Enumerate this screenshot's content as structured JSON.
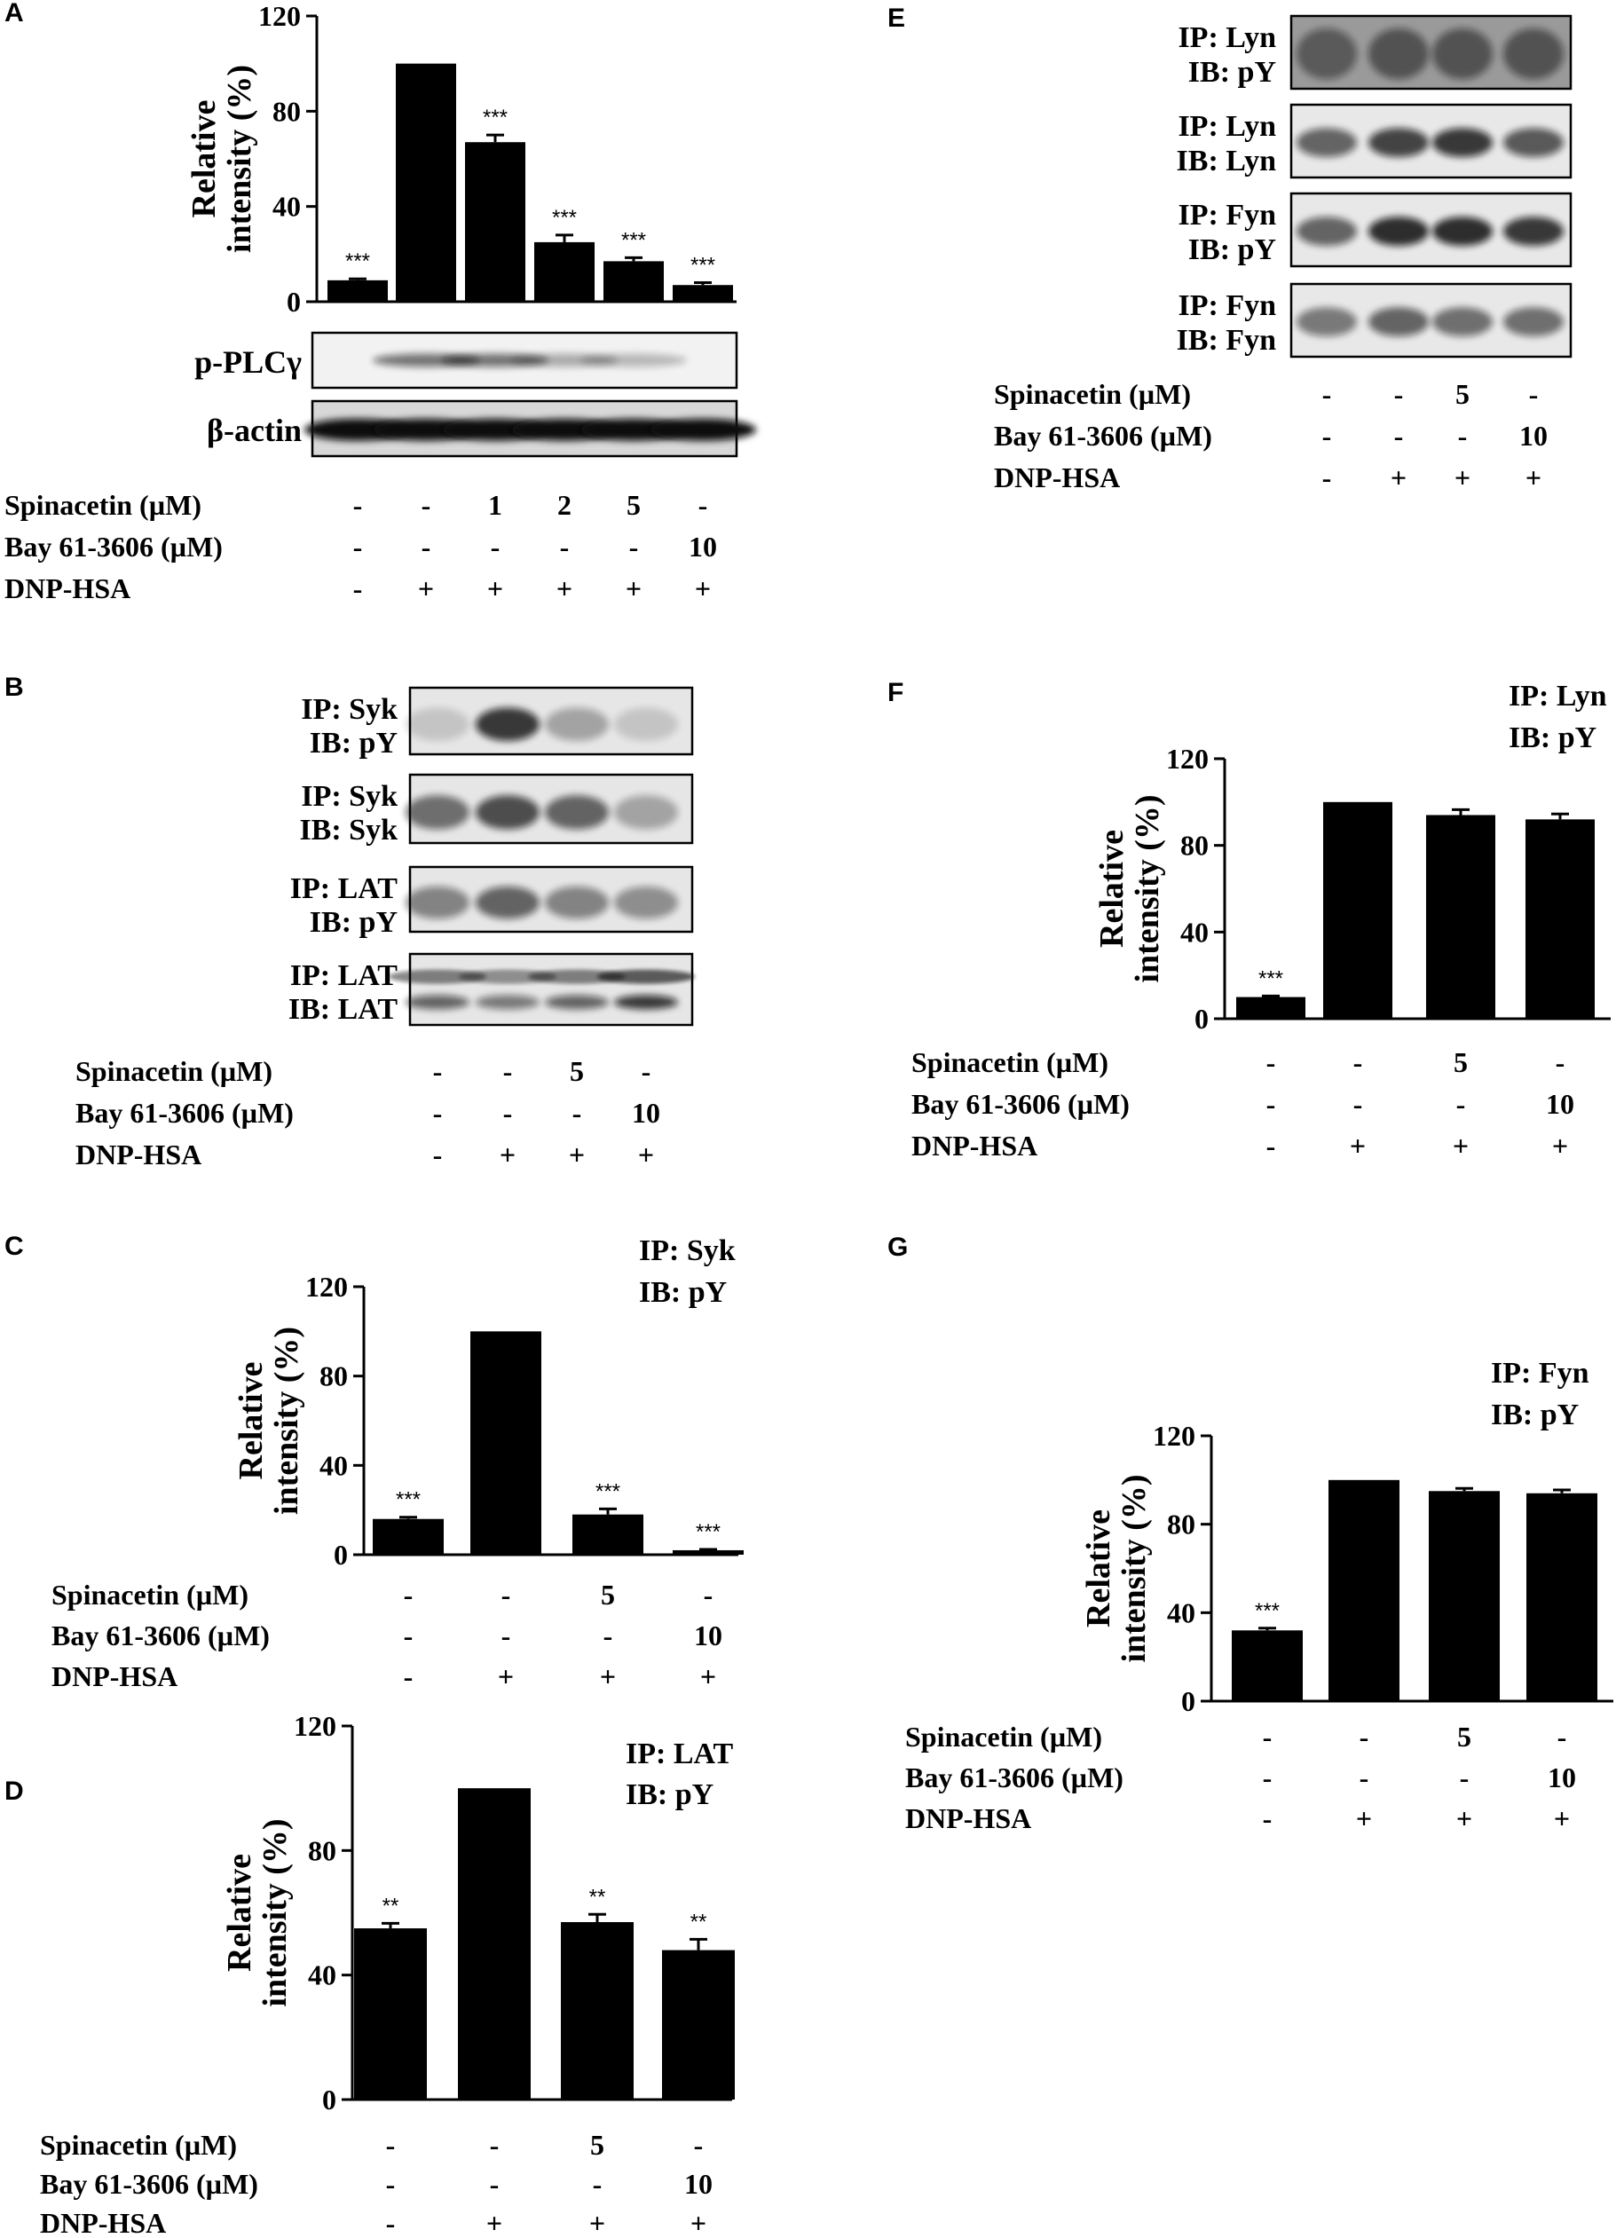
{
  "panels": {
    "A": {
      "label": "A",
      "y_axis_label_line1": "Relative",
      "y_axis_label_line2": "intensity (%)",
      "blot_rows": [
        "p-PLCγ",
        "β-actin"
      ],
      "treatments": [
        {
          "name": "Spinacetin (µM)",
          "values": [
            "-",
            "-",
            "1",
            "2",
            "5",
            "-"
          ]
        },
        {
          "name": "Bay 61-3606 (µM)",
          "values": [
            "-",
            "-",
            "-",
            "-",
            "-",
            "10"
          ]
        },
        {
          "name": "DNP-HSA",
          "values": [
            "-",
            "+",
            "+",
            "+",
            "+",
            "+"
          ]
        }
      ]
    },
    "B": {
      "label": "B",
      "blot_rows": [
        [
          "IP: Syk",
          "IB: pY"
        ],
        [
          "IP: Syk",
          "IB: Syk"
        ],
        [
          "IP: LAT",
          "IB: pY"
        ],
        [
          "IP: LAT",
          "IB: LAT"
        ]
      ],
      "treatments": [
        {
          "name": "Spinacetin (µM)",
          "values": [
            "-",
            "-",
            "5",
            "-"
          ]
        },
        {
          "name": "Bay 61-3606 (µM)",
          "values": [
            "-",
            "-",
            "-",
            "10"
          ]
        },
        {
          "name": "DNP-HSA",
          "values": [
            "-",
            "+",
            "+",
            "+"
          ]
        }
      ]
    },
    "C": {
      "label": "C",
      "ip_label": "IP: Syk",
      "ib_label": "IB: pY",
      "y_axis_label_line1": "Relative",
      "y_axis_label_line2": "intensity (%)",
      "treatments": [
        {
          "name": "Spinacetin (µM)",
          "values": [
            "-",
            "-",
            "5",
            "-"
          ]
        },
        {
          "name": "Bay 61-3606 (µM)",
          "values": [
            "-",
            "-",
            "-",
            "10"
          ]
        },
        {
          "name": "DNP-HSA",
          "values": [
            "-",
            "+",
            "+",
            "+"
          ]
        }
      ]
    },
    "D": {
      "label": "D",
      "ip_label": "IP: LAT",
      "ib_label": "IB: pY",
      "y_axis_label_line1": "Relative",
      "y_axis_label_line2": "intensity (%)",
      "treatments": [
        {
          "name": "Spinacetin (µM)",
          "values": [
            "-",
            "-",
            "5",
            "-"
          ]
        },
        {
          "name": "Bay 61-3606 (µM)",
          "values": [
            "-",
            "-",
            "-",
            "10"
          ]
        },
        {
          "name": "DNP-HSA",
          "values": [
            "-",
            "+",
            "+",
            "+"
          ]
        }
      ]
    },
    "E": {
      "label": "E",
      "blot_rows": [
        [
          "IP: Lyn",
          "IB: pY"
        ],
        [
          "IP: Lyn",
          "IB: Lyn"
        ],
        [
          "IP: Fyn",
          "IB: pY"
        ],
        [
          "IP: Fyn",
          "IB: Fyn"
        ]
      ],
      "treatments": [
        {
          "name": "Spinacetin (µM)",
          "values": [
            "-",
            "-",
            "5",
            "-"
          ]
        },
        {
          "name": "Bay 61-3606 (µM)",
          "values": [
            "-",
            "-",
            "-",
            "10"
          ]
        },
        {
          "name": "DNP-HSA",
          "values": [
            "-",
            "+",
            "+",
            "+"
          ]
        }
      ]
    },
    "F": {
      "label": "F",
      "ip_label": "IP: Lyn",
      "ib_label": "IB: pY",
      "y_axis_label_line1": "Relative",
      "y_axis_label_line2": "intensity (%)",
      "treatments": [
        {
          "name": "Spinacetin (µM)",
          "values": [
            "-",
            "-",
            "5",
            "-"
          ]
        },
        {
          "name": "Bay 61-3606 (µM)",
          "values": [
            "-",
            "-",
            "-",
            "10"
          ]
        },
        {
          "name": "DNP-HSA",
          "values": [
            "-",
            "+",
            "+",
            "+"
          ]
        }
      ]
    },
    "G": {
      "label": "G",
      "ip_label": "IP: Fyn",
      "ib_label": "IB: pY",
      "y_axis_label_line1": "Relative",
      "y_axis_label_line2": "intensity (%)",
      "treatments": [
        {
          "name": "Spinacetin (µM)",
          "values": [
            "-",
            "-",
            "5",
            "-"
          ]
        },
        {
          "name": "Bay 61-3606 (µM)",
          "values": [
            "-",
            "-",
            "-",
            "10"
          ]
        },
        {
          "name": "DNP-HSA",
          "values": [
            "-",
            "+",
            "+",
            "+"
          ]
        }
      ]
    }
  },
  "chart_data": [
    {
      "panel": "A",
      "type": "bar",
      "ylabel": "Relative intensity (%)",
      "ylim": [
        0,
        120
      ],
      "yticks": [
        0,
        40,
        80,
        120
      ],
      "values": [
        9,
        100,
        67,
        25,
        17,
        7
      ],
      "errors": [
        0.6,
        0,
        3,
        3,
        1.5,
        1
      ],
      "significance": [
        "***",
        "",
        "***",
        "***",
        "***",
        "***"
      ],
      "bar_color": "#000000"
    },
    {
      "panel": "C",
      "type": "bar",
      "ylabel": "Relative intensity (%)",
      "ylim": [
        0,
        120
      ],
      "yticks": [
        0,
        40,
        80,
        120
      ],
      "values": [
        16,
        100,
        18,
        2
      ],
      "errors": [
        0.8,
        0,
        2.5,
        0.4
      ],
      "significance": [
        "***",
        "",
        "***",
        "***"
      ],
      "bar_color": "#000000"
    },
    {
      "panel": "D",
      "type": "bar",
      "ylabel": "Relative intensity (%)",
      "ylim": [
        0,
        120
      ],
      "yticks": [
        0,
        40,
        80,
        120
      ],
      "values": [
        55,
        100,
        57,
        48
      ],
      "errors": [
        1.6,
        0,
        2.5,
        3.5
      ],
      "significance": [
        "**",
        "",
        "**",
        "**"
      ],
      "bar_color": "#000000"
    },
    {
      "panel": "F",
      "type": "bar",
      "ylabel": "Relative intensity (%)",
      "ylim": [
        0,
        120
      ],
      "yticks": [
        0,
        40,
        80,
        120
      ],
      "values": [
        10,
        100,
        94,
        92
      ],
      "errors": [
        0.5,
        0,
        2.5,
        2.5
      ],
      "significance": [
        "***",
        "",
        "",
        ""
      ],
      "bar_color": "#000000"
    },
    {
      "panel": "G",
      "type": "bar",
      "ylabel": "Relative intensity (%)",
      "ylim": [
        0,
        120
      ],
      "yticks": [
        0,
        40,
        80,
        120
      ],
      "values": [
        32,
        100,
        95,
        94
      ],
      "errors": [
        1,
        0,
        1.2,
        1.5
      ],
      "significance": [
        "***",
        "",
        "",
        ""
      ],
      "bar_color": "#000000"
    }
  ]
}
